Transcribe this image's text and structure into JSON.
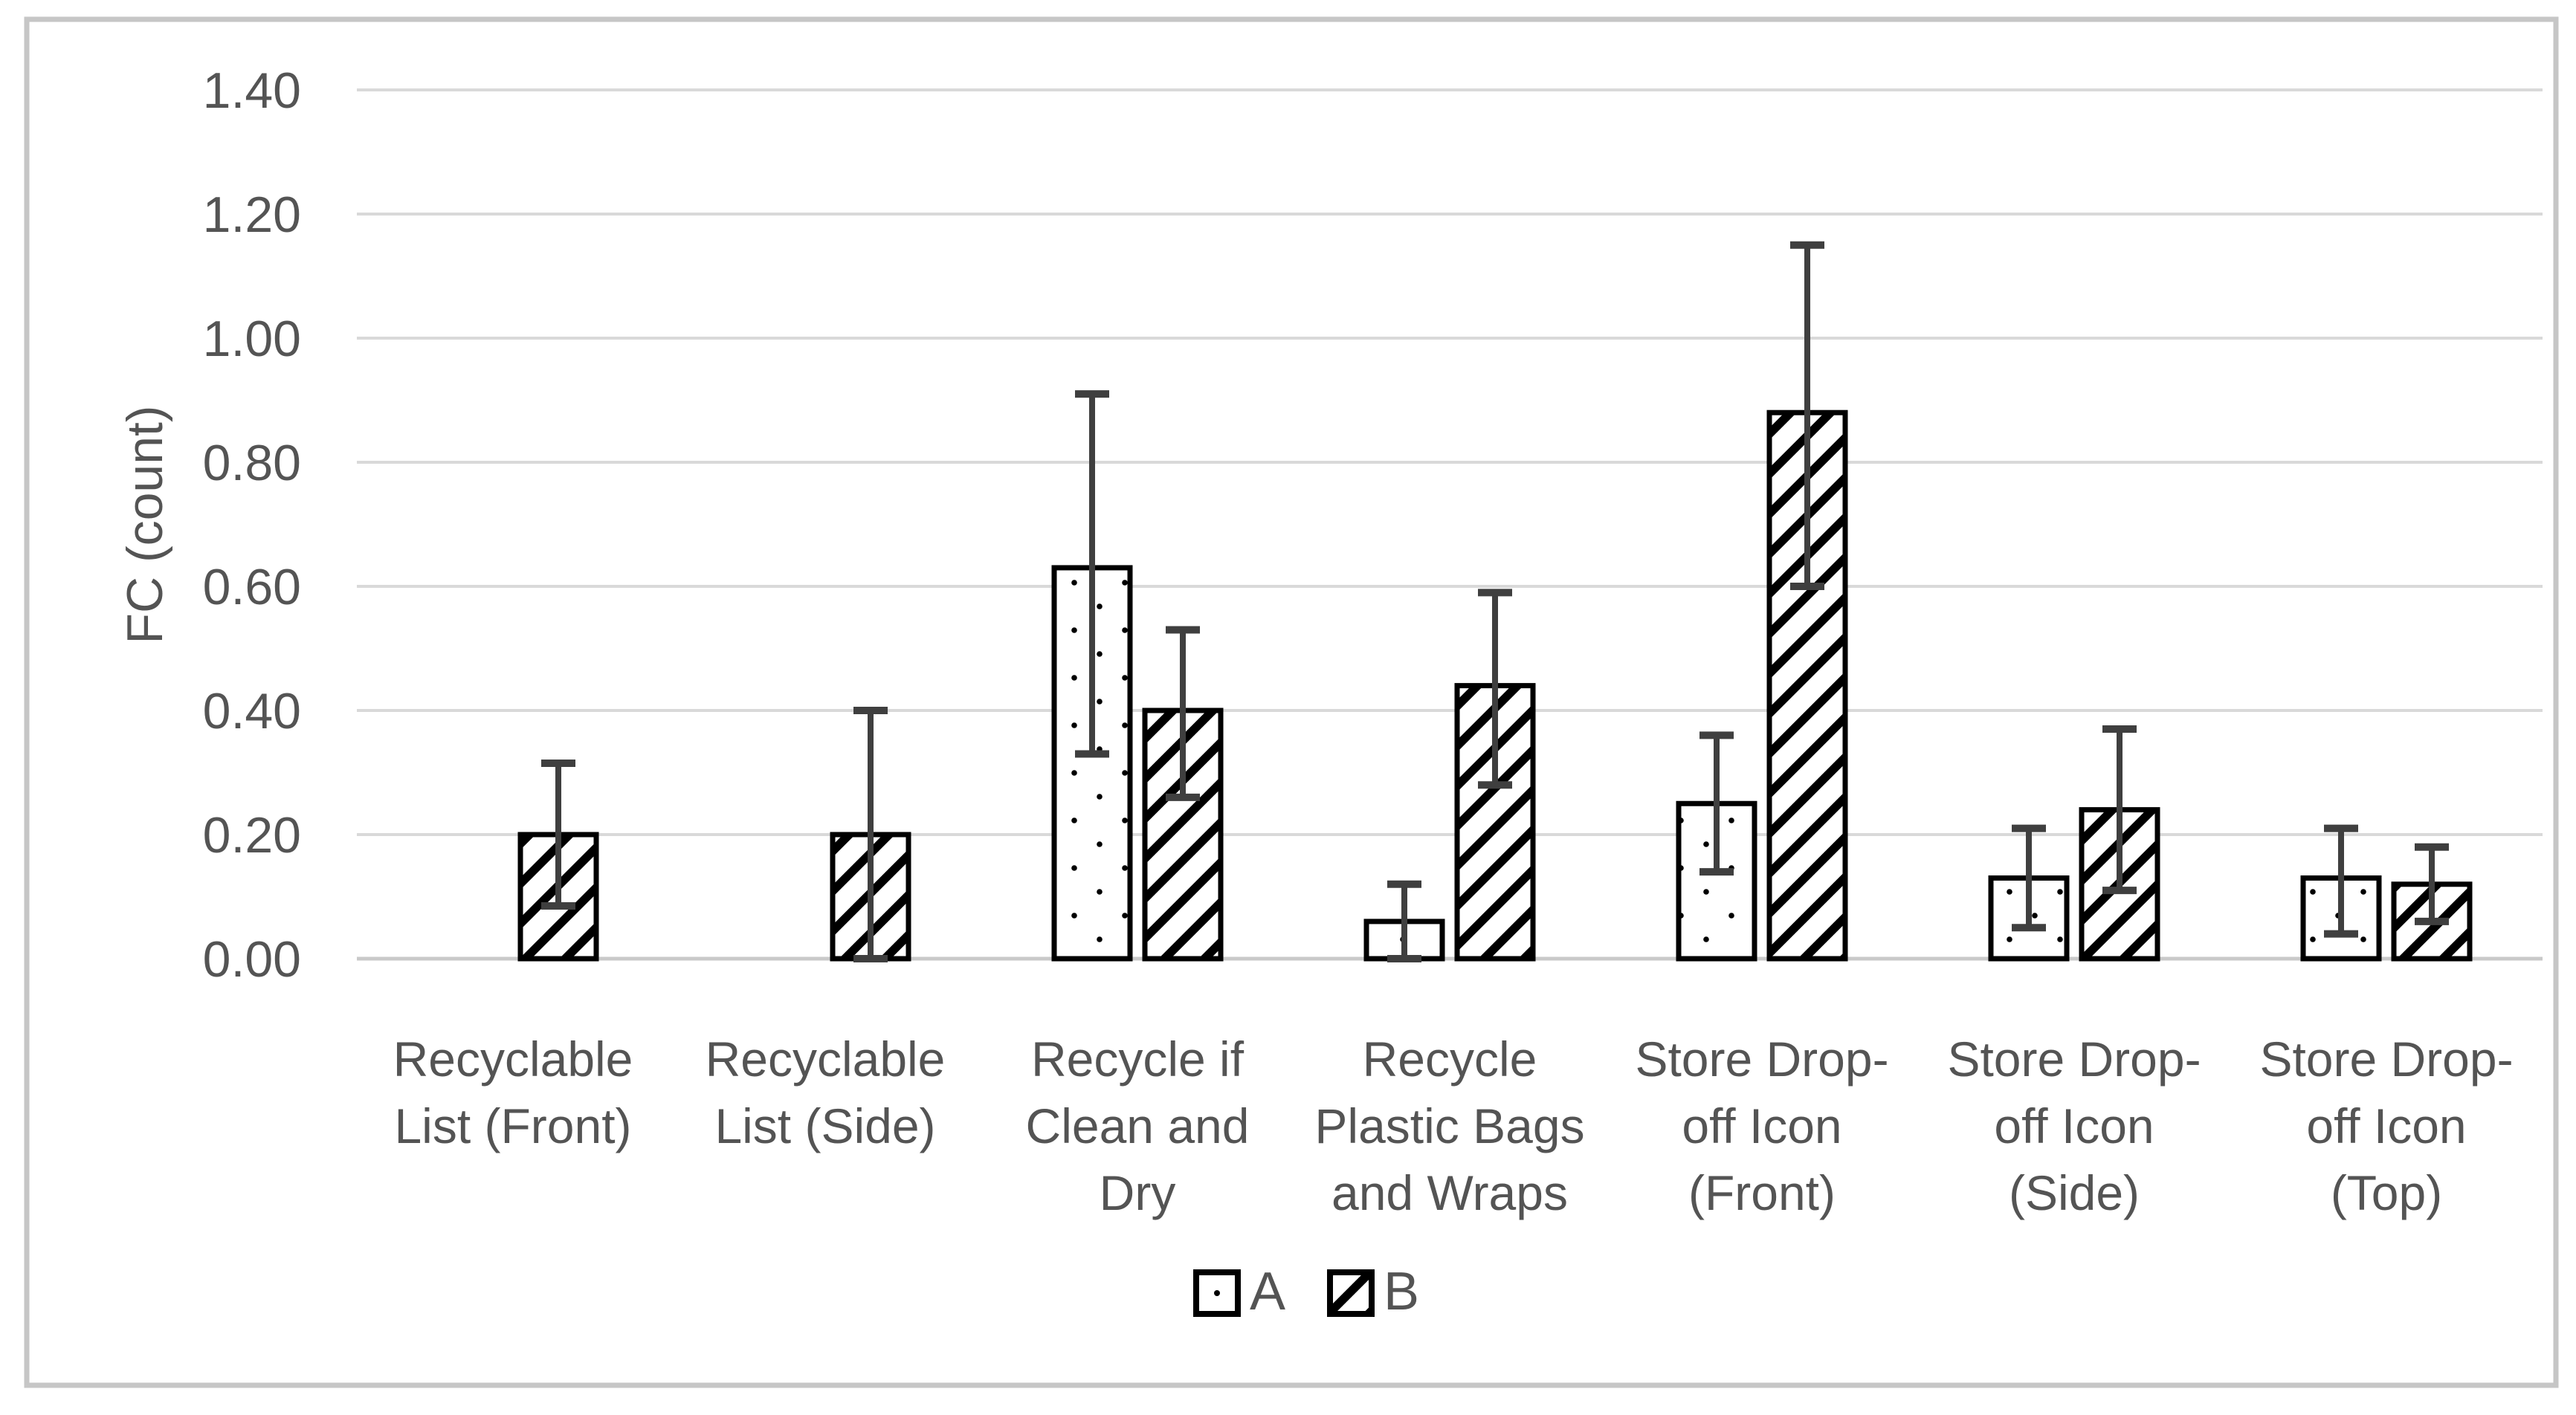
{
  "chart_data": {
    "type": "bar",
    "title": "",
    "ylabel": "FC (count)",
    "xlabel": "",
    "ylim": [
      0,
      1.4
    ],
    "ytick_step": 0.2,
    "ytick_labels": [
      "0.00",
      "0.20",
      "0.40",
      "0.60",
      "0.80",
      "1.00",
      "1.20",
      "1.40"
    ],
    "grid": true,
    "legend_position": "bottom",
    "categories": [
      "Recyclable List (Front)",
      "Recyclable List (Side)",
      "Recycle if Clean and Dry",
      "Recycle Plastic Bags and Wraps",
      "Store Drop-off Icon (Front)",
      "Store Drop-off Icon (Side)",
      "Store Drop-off Icon (Top)"
    ],
    "category_label_lines": [
      [
        "Recyclable",
        "List (Front)"
      ],
      [
        "Recyclable",
        "List (Side)"
      ],
      [
        "Recycle if",
        "Clean and",
        "Dry"
      ],
      [
        "Recycle",
        "Plastic Bags",
        "and Wraps"
      ],
      [
        "Store Drop-",
        "off Icon",
        "(Front)"
      ],
      [
        "Store Drop-",
        "off Icon",
        "(Side)"
      ],
      [
        "Store Drop-",
        "off Icon",
        "(Top)"
      ]
    ],
    "series": [
      {
        "name": "A",
        "pattern": "dots",
        "values": [
          0,
          0,
          0.63,
          0.06,
          0.25,
          0.13,
          0.13
        ],
        "error_low": [
          null,
          null,
          0.33,
          0.0,
          0.14,
          0.05,
          0.04
        ],
        "error_high": [
          null,
          null,
          0.91,
          0.12,
          0.36,
          0.21,
          0.21
        ]
      },
      {
        "name": "B",
        "pattern": "hatch",
        "values": [
          0.2,
          0.2,
          0.4,
          0.44,
          0.88,
          0.24,
          0.12
        ],
        "error_low": [
          0.085,
          0.0,
          0.26,
          0.28,
          0.6,
          0.11,
          0.06
        ],
        "error_high": [
          0.315,
          0.4,
          0.53,
          0.59,
          1.15,
          0.37,
          0.18
        ]
      }
    ]
  },
  "style": {
    "background": "#ffffff",
    "chart_border_color": "#c6c6c6",
    "gridline_color": "#d9d9d9",
    "baseline_color": "#c9c9c9",
    "text_color": "#545454",
    "bar_border_color": "#000000",
    "pattern_color": "#000000",
    "error_bar_color": "#3f3f3f"
  }
}
